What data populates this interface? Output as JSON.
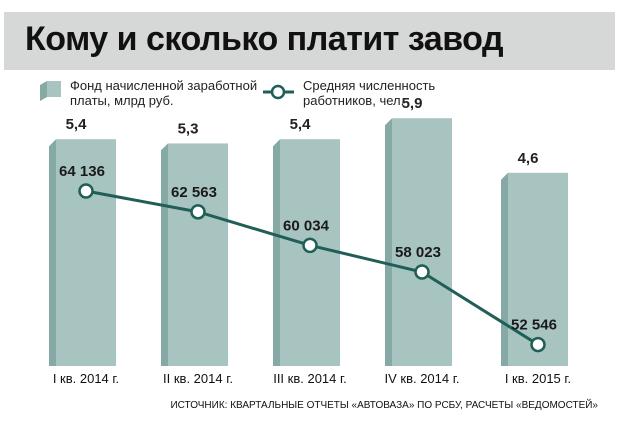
{
  "title": "Кому и сколько платит завод",
  "colors": {
    "bar_face": "#a8c4c1",
    "bar_top": "#c9dcd9",
    "bar_side": "#86a9a5",
    "line": "#205e58"
  },
  "legend": {
    "bars_line1": "Фонд начисленной заработной",
    "bars_line2": "платы, млрд руб.",
    "line_line1": "Средняя численность",
    "line_line2": "работников, чел."
  },
  "source": "ИСТОЧНИК: КВАРТАЛЬНЫЕ ОТЧЕТЫ «АВТОВАЗА» ПО РСБУ, РАСЧЕТЫ «ВЕДОМОСТЕЙ»",
  "chart_data": {
    "type": "bar",
    "categories": [
      "I кв. 2014 г.",
      "II кв. 2014 г.",
      "III кв. 2014 г.",
      "IV кв. 2014 г.",
      "I кв. 2015 г."
    ],
    "series": [
      {
        "name": "Фонд начисленной заработной платы, млрд руб.",
        "type": "bar",
        "values": [
          5.4,
          5.3,
          5.4,
          5.9,
          4.6
        ],
        "labels": [
          "5,4",
          "5,3",
          "5,4",
          "5,9",
          "4,6"
        ]
      },
      {
        "name": "Средняя численность работников, чел.",
        "type": "line",
        "values": [
          64136,
          62563,
          60034,
          58023,
          52546
        ],
        "labels": [
          "64 136",
          "62 563",
          "60 034",
          "58 023",
          "52 546"
        ]
      }
    ]
  }
}
